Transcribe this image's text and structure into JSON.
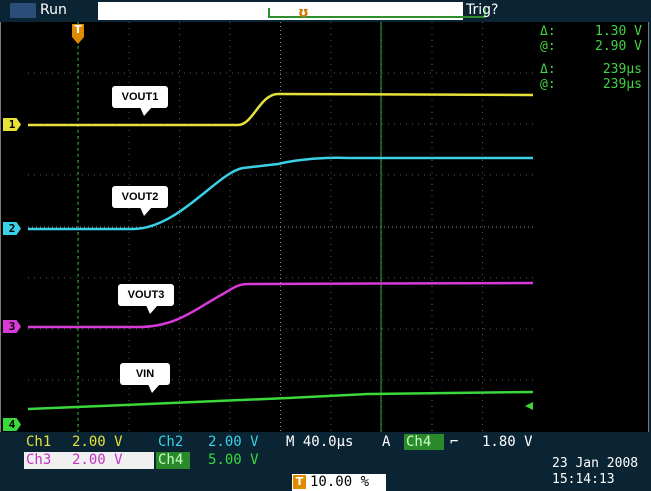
{
  "status": {
    "mode": "Run",
    "trigger_state": "Trig?"
  },
  "cursors": {
    "delta_v_label": "Δ:",
    "delta_v": "1.30 V",
    "at_v_label": "@:",
    "at_v": "2.90 V",
    "delta_t_label": "Δ:",
    "delta_t": "239µs",
    "at_t_label": "@:",
    "at_t": "239µs"
  },
  "channels": [
    {
      "label": "VOUT1",
      "marker": "1",
      "color": "#e6e23a"
    },
    {
      "label": "VOUT2",
      "marker": "2",
      "color": "#3ad0e6"
    },
    {
      "label": "VOUT3",
      "marker": "3",
      "color": "#d83ad8"
    },
    {
      "label": "VIN",
      "marker": "4",
      "color": "#3ad83a"
    }
  ],
  "scales": {
    "ch1_label": "Ch1",
    "ch1_value": "2.00 V",
    "ch2_label": "Ch2",
    "ch2_value": "2.00 V",
    "ch3_label": "Ch3",
    "ch3_value": "2.00 V",
    "ch4_label": "Ch4",
    "ch4_value": "5.00 V",
    "timebase": "M 40.0µs",
    "trigger_source_label": "A",
    "trigger_channel": "Ch4",
    "trigger_slope": "⌐",
    "trigger_level": "1.80 V",
    "trigger_position": "10.00 %"
  },
  "timestamp": {
    "date": "23 Jan  2008",
    "time": "15:14:13"
  },
  "colors": {
    "ch1": "#e6e23a",
    "ch2": "#3ad0e6",
    "ch3": "#d83ad8",
    "ch4": "#3ad83a",
    "readout_green": "#44d244"
  }
}
